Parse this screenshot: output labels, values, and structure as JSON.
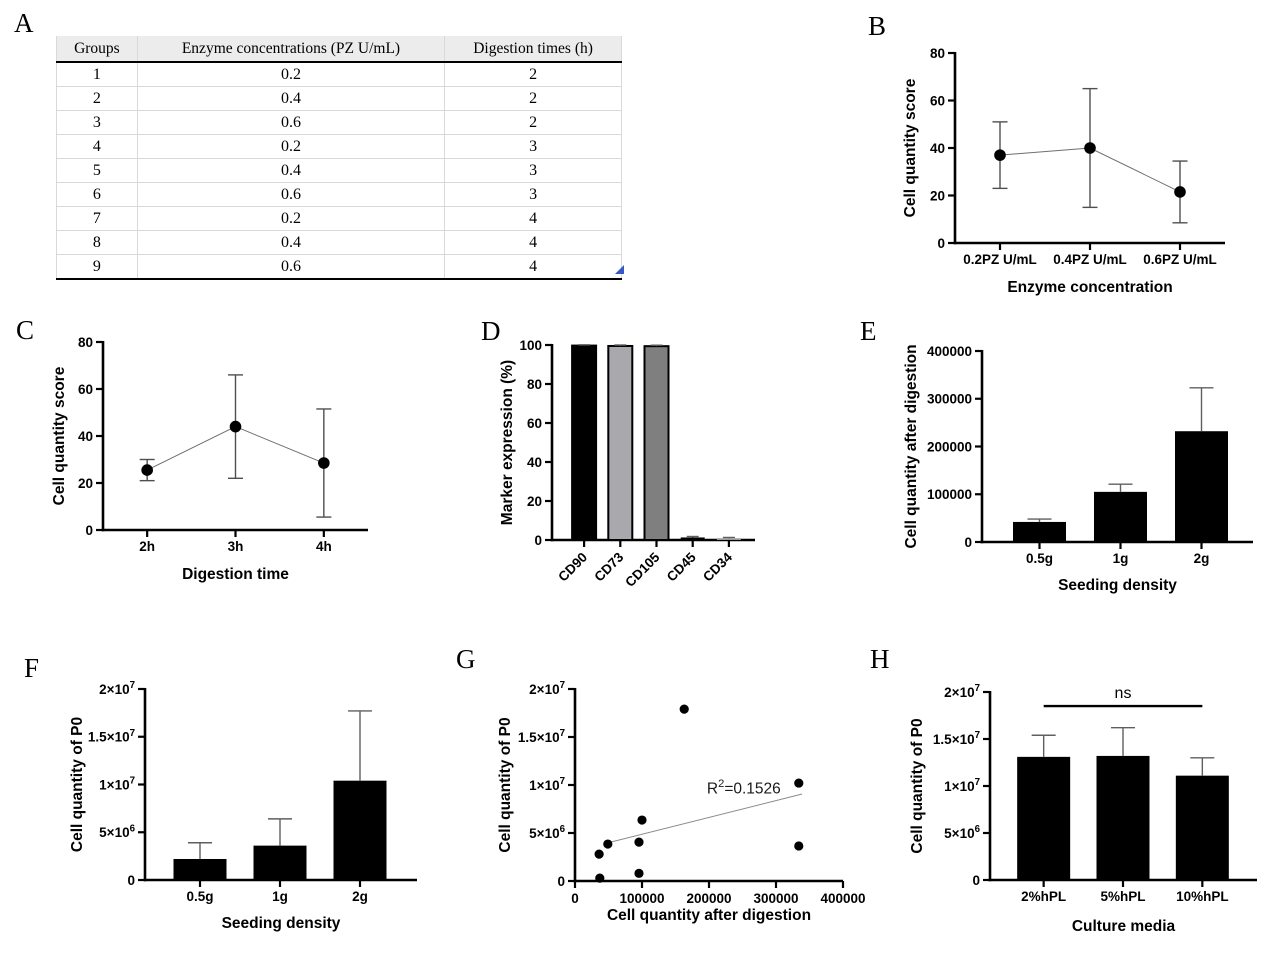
{
  "table": {
    "panel_label": "A",
    "headers": [
      "Groups",
      "Enzyme concentrations (PZ U/mL)",
      "Digestion times (h)"
    ],
    "rows": [
      [
        "1",
        "0.2",
        "2"
      ],
      [
        "2",
        "0.4",
        "2"
      ],
      [
        "3",
        "0.6",
        "2"
      ],
      [
        "4",
        "0.2",
        "3"
      ],
      [
        "5",
        "0.4",
        "3"
      ],
      [
        "6",
        "0.6",
        "3"
      ],
      [
        "7",
        "0.2",
        "4"
      ],
      [
        "8",
        "0.4",
        "4"
      ],
      [
        "9",
        "0.6",
        "4"
      ]
    ]
  },
  "colors": {
    "bar_fill": "#000000",
    "table_header_bg": "#ececec",
    "resize_handle_blue": "#3a57c4",
    "error_bar_gray": "#5f5f5f"
  },
  "chart_data": [
    {
      "id": "B",
      "panel_label": "B",
      "type": "line",
      "ylabel": "Cell quantity score",
      "xlabel": "Enzyme concentration",
      "categories": [
        "0.2PZ U/mL",
        "0.4PZ U/mL",
        "0.6PZ U/mL"
      ],
      "values": [
        37,
        40,
        21.5
      ],
      "errors": [
        14,
        25,
        13
      ],
      "ylim": [
        0,
        80
      ],
      "yticks": [
        {
          "v": 0,
          "t": "0"
        },
        {
          "v": 20,
          "t": "20"
        },
        {
          "v": 40,
          "t": "40"
        },
        {
          "v": 60,
          "t": "60"
        },
        {
          "v": 80,
          "t": "80"
        }
      ]
    },
    {
      "id": "C",
      "panel_label": "C",
      "type": "line",
      "ylabel": "Cell quantity score",
      "xlabel": "Digestion time",
      "categories": [
        "2h",
        "3h",
        "4h"
      ],
      "values": [
        25.5,
        44,
        28.5
      ],
      "errors": [
        4.5,
        22,
        23
      ],
      "ylim": [
        0,
        80
      ],
      "yticks": [
        {
          "v": 0,
          "t": "0"
        },
        {
          "v": 20,
          "t": "20"
        },
        {
          "v": 40,
          "t": "40"
        },
        {
          "v": 60,
          "t": "60"
        },
        {
          "v": 80,
          "t": "80"
        }
      ]
    },
    {
      "id": "D",
      "panel_label": "D",
      "type": "bar",
      "ylabel": "Marker expression (%)",
      "xlabel": "",
      "categories": [
        "CD90",
        "CD73",
        "CD105",
        "CD45",
        "CD34"
      ],
      "values": [
        99.7,
        99.5,
        99.4,
        1.3,
        0.9
      ],
      "errors": [
        0.4,
        0.5,
        0.5,
        0.5,
        0.4
      ],
      "bar_colors": [
        "#000000",
        "#a9a9ad",
        "#7f7f7f",
        "#000000",
        "#9b9b9b"
      ],
      "ylim": [
        0,
        100
      ],
      "yticks": [
        {
          "v": 0,
          "t": "0"
        },
        {
          "v": 20,
          "t": "20"
        },
        {
          "v": 40,
          "t": "40"
        },
        {
          "v": 60,
          "t": "60"
        },
        {
          "v": 80,
          "t": "80"
        },
        {
          "v": 100,
          "t": "100"
        }
      ]
    },
    {
      "id": "E",
      "panel_label": "E",
      "type": "bar",
      "ylabel": "Cell quantity after digestion",
      "xlabel": "Seeding density",
      "categories": [
        "0.5g",
        "1g",
        "2g"
      ],
      "values": [
        42000,
        105000,
        232000
      ],
      "errors": [
        6000,
        16000,
        91000
      ],
      "bar_color": "#000000",
      "ylim": [
        0,
        400000
      ],
      "yticks": [
        {
          "v": 0,
          "t": "0"
        },
        {
          "v": 100000,
          "t": "100000"
        },
        {
          "v": 200000,
          "t": "200000"
        },
        {
          "v": 300000,
          "t": "300000"
        },
        {
          "v": 400000,
          "t": "400000"
        }
      ]
    },
    {
      "id": "F",
      "panel_label": "F",
      "type": "bar",
      "ylabel": "Cell quantity of P0",
      "xlabel": "Seeding density",
      "categories": [
        "0.5g",
        "1g",
        "2g"
      ],
      "values": [
        2200000,
        3600000,
        10400000
      ],
      "errors": [
        1700000,
        2800000,
        7300000
      ],
      "bar_color": "#000000",
      "ylim": [
        0,
        20000000
      ],
      "yticks": [
        {
          "v": 0,
          "t": "0"
        },
        {
          "v": 5000000,
          "t": "5×10",
          "sup": "6"
        },
        {
          "v": 10000000,
          "t": "1×10",
          "sup": "7"
        },
        {
          "v": 15000000,
          "t": "1.5×10",
          "sup": "7"
        },
        {
          "v": 20000000,
          "t": "2×10",
          "sup": "7"
        }
      ]
    },
    {
      "id": "G",
      "panel_label": "G",
      "type": "scatter",
      "ylabel": "Cell quantity of P0",
      "xlabel": "Cell quantity after digestion",
      "points": [
        [
          37000,
          300000
        ],
        [
          36000,
          2800000
        ],
        [
          49000,
          3850000
        ],
        [
          95500,
          800000
        ],
        [
          95500,
          4050000
        ],
        [
          100000,
          6350000
        ],
        [
          163000,
          17900000
        ],
        [
          334000,
          10200000
        ],
        [
          334000,
          3650000
        ]
      ],
      "trend": {
        "x1": 42000,
        "y1": 3850000,
        "x2": 339000,
        "y2": 9060000
      },
      "annotation": {
        "base": "R",
        "sup": "2",
        "rest": "=0.1526",
        "x": 252000,
        "y": 9100000
      },
      "xlim": [
        0,
        400000
      ],
      "ylim": [
        0,
        20000000
      ],
      "xticks": [
        {
          "v": 0,
          "t": "0"
        },
        {
          "v": 100000,
          "t": "100000"
        },
        {
          "v": 200000,
          "t": "200000"
        },
        {
          "v": 300000,
          "t": "300000"
        },
        {
          "v": 400000,
          "t": "400000"
        }
      ],
      "yticks": [
        {
          "v": 0,
          "t": "0"
        },
        {
          "v": 5000000,
          "t": "5×10",
          "sup": "6"
        },
        {
          "v": 10000000,
          "t": "1×10",
          "sup": "7"
        },
        {
          "v": 15000000,
          "t": "1.5×10",
          "sup": "7"
        },
        {
          "v": 20000000,
          "t": "2×10",
          "sup": "7"
        }
      ]
    },
    {
      "id": "H",
      "panel_label": "H",
      "type": "bar",
      "ylabel": "Cell quantity of P0",
      "xlabel": "Culture media",
      "categories": [
        "2%hPL",
        "5%hPL",
        "10%hPL"
      ],
      "values": [
        13100000,
        13200000,
        11100000
      ],
      "errors": [
        2300000,
        3000000,
        1900000
      ],
      "bar_color": "#000000",
      "ylim": [
        0,
        20000000
      ],
      "yticks": [
        {
          "v": 0,
          "t": "0"
        },
        {
          "v": 5000000,
          "t": "5×10",
          "sup": "6"
        },
        {
          "v": 10000000,
          "t": "1×10",
          "sup": "7"
        },
        {
          "v": 15000000,
          "t": "1.5×10",
          "sup": "7"
        },
        {
          "v": 20000000,
          "t": "2×10",
          "sup": "7"
        }
      ],
      "comparison": {
        "label": "ns",
        "from": 0,
        "to": 2,
        "y": 18500000
      }
    }
  ]
}
